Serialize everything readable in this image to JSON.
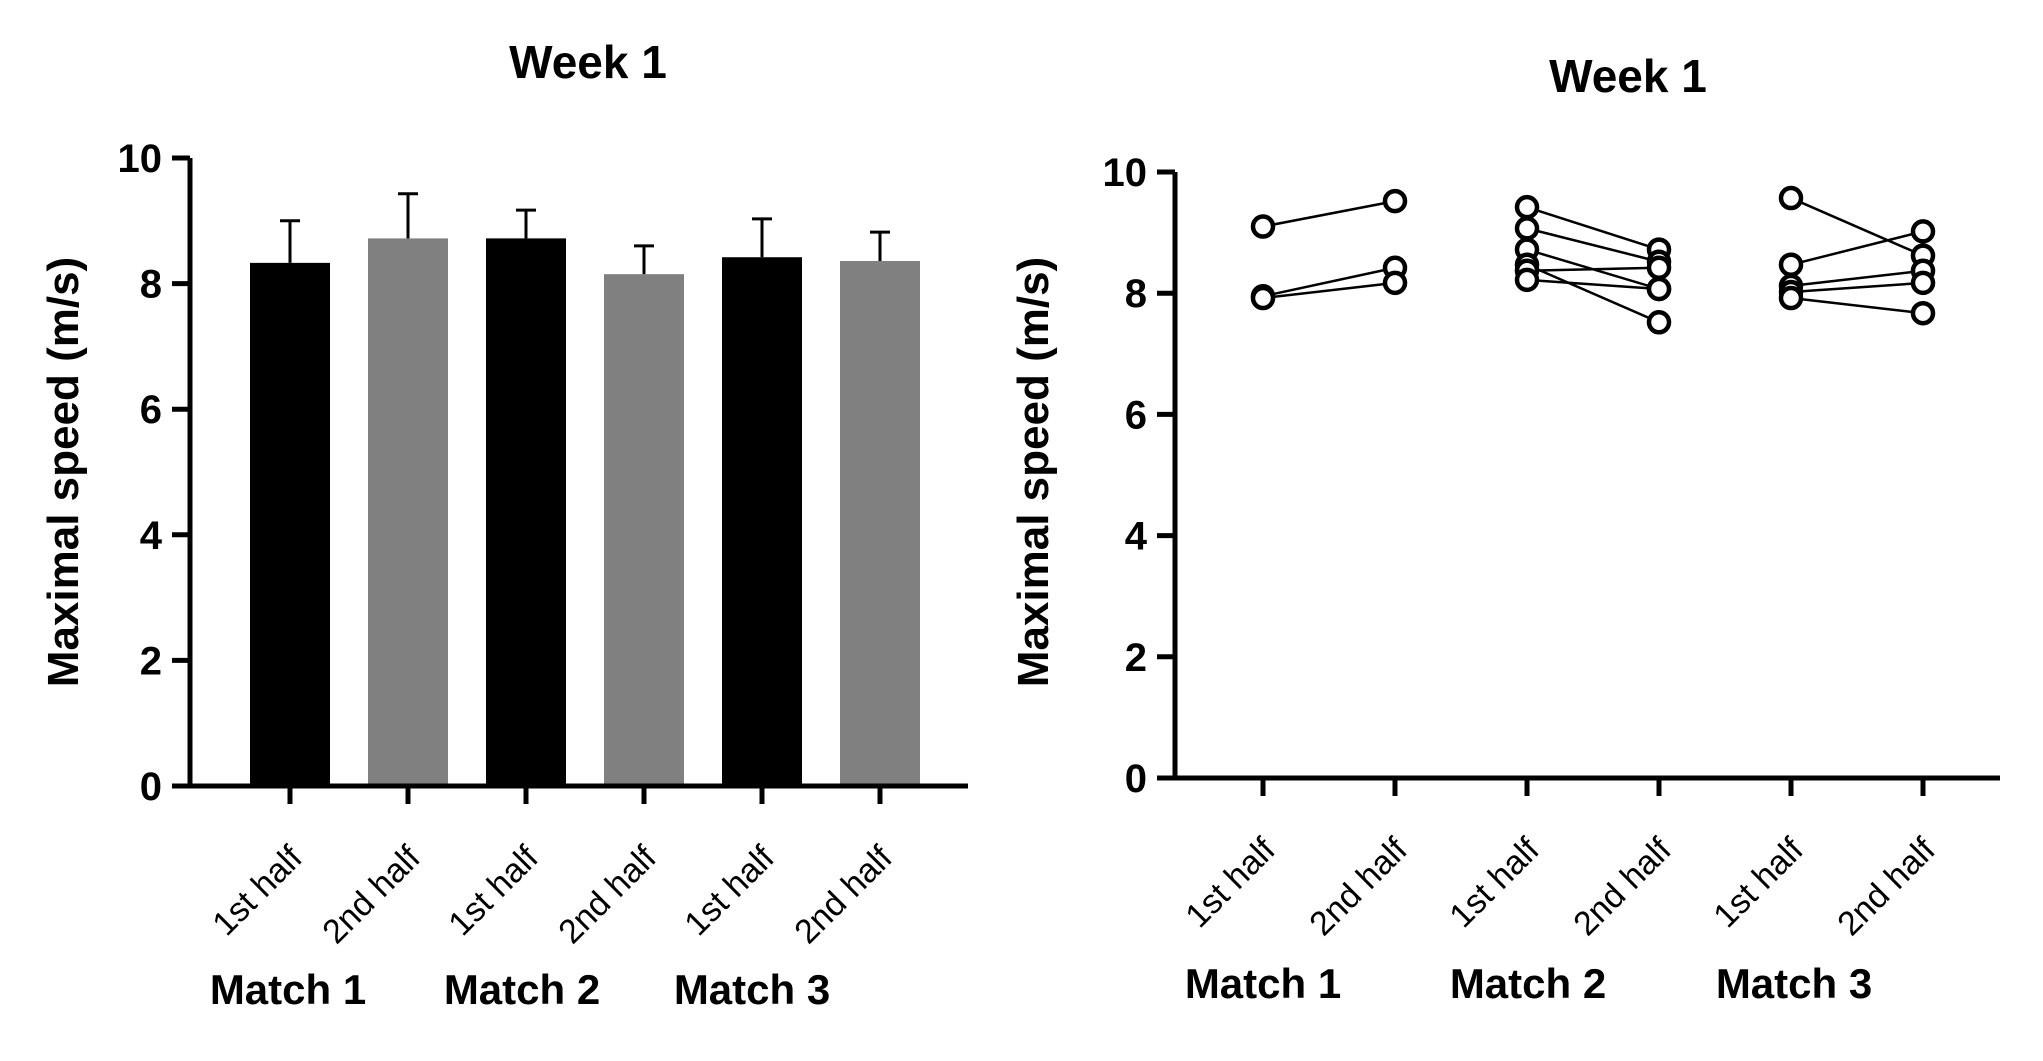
{
  "chart_data": [
    {
      "type": "bar",
      "title": "Week 1",
      "ylabel": "Maximal speed (m/s)",
      "ylim": [
        0,
        10
      ],
      "yticks": [
        "0",
        "2",
        "4",
        "6",
        "8",
        "10"
      ],
      "grid": false,
      "categories": [
        "1st half",
        "2nd half",
        "1st half",
        "2nd half",
        "1st half",
        "2nd half"
      ],
      "groups": [
        "Match 1",
        "Match 2",
        "Match 3"
      ],
      "values": [
        8.33,
        8.72,
        8.72,
        8.15,
        8.42,
        8.36
      ],
      "error_upper": [
        9.0,
        9.43,
        9.17,
        8.6,
        9.03,
        8.82
      ],
      "bar_colors": [
        "#000000",
        "#808080",
        "#000000",
        "#808080",
        "#000000",
        "#808080"
      ]
    },
    {
      "type": "scatter",
      "title": "Week 1",
      "ylabel": "Maximal speed (m/s)",
      "ylim": [
        0,
        10
      ],
      "yticks": [
        "0",
        "2",
        "4",
        "6",
        "8",
        "10"
      ],
      "grid": false,
      "categories": [
        "1st half",
        "2nd half",
        "1st half",
        "2nd half",
        "1st half",
        "2nd half"
      ],
      "groups": [
        "Match 1",
        "Match 2",
        "Match 3"
      ],
      "pairs": [
        {
          "match": 1,
          "first": 9.1,
          "second": 9.52
        },
        {
          "match": 1,
          "first": 7.95,
          "second": 8.42
        },
        {
          "match": 1,
          "first": 7.92,
          "second": 8.17
        },
        {
          "match": 2,
          "first": 9.42,
          "second": 8.72
        },
        {
          "match": 2,
          "first": 9.07,
          "second": 8.52
        },
        {
          "match": 2,
          "first": 8.72,
          "second": 8.07
        },
        {
          "match": 2,
          "first": 8.47,
          "second": 7.52
        },
        {
          "match": 2,
          "first": 8.37,
          "second": 8.42
        },
        {
          "match": 2,
          "first": 8.22,
          "second": 8.07
        },
        {
          "match": 3,
          "first": 9.57,
          "second": 8.62
        },
        {
          "match": 3,
          "first": 8.47,
          "second": 9.02
        },
        {
          "match": 3,
          "first": 8.12,
          "second": 8.37
        },
        {
          "match": 3,
          "first": 8.02,
          "second": 8.17
        },
        {
          "match": 3,
          "first": 7.92,
          "second": 7.67
        }
      ],
      "marker": "open-circle",
      "line_color": "#000000"
    }
  ]
}
